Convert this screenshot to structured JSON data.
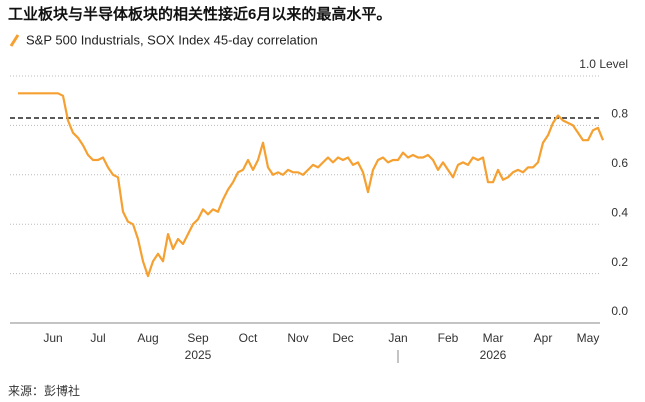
{
  "chart_data": {
    "type": "line",
    "title": "工业板块与半导体板块的相关性接近6月以来的最高水平。",
    "source": "来源：彭博社",
    "categories": [
      null,
      null,
      null,
      null,
      null,
      null,
      null,
      "Jun",
      null,
      null,
      null,
      null,
      null,
      null,
      null,
      null,
      "Jul",
      null,
      null,
      null,
      null,
      null,
      null,
      null,
      null,
      null,
      "Aug",
      null,
      null,
      null,
      null,
      null,
      null,
      null,
      null,
      null,
      "Sep",
      null,
      null,
      null,
      null,
      null,
      null,
      null,
      null,
      null,
      "Oct",
      null,
      null,
      null,
      null,
      null,
      null,
      null,
      null,
      null,
      "Nov",
      null,
      null,
      null,
      null,
      null,
      null,
      null,
      null,
      "Dec",
      null,
      null,
      null,
      null,
      null,
      null,
      null,
      null,
      null,
      null,
      "Jan",
      null,
      null,
      null,
      null,
      null,
      null,
      null,
      null,
      null,
      "Feb",
      null,
      null,
      null,
      null,
      null,
      null,
      null,
      null,
      "Mar",
      null,
      null,
      null,
      null,
      null,
      null,
      null,
      null,
      null,
      "Apr",
      null,
      null,
      null,
      null,
      null,
      null,
      null,
      null,
      "May",
      null,
      null,
      null
    ],
    "x_groups": [
      {
        "label": "2025",
        "size": 76
      },
      {
        "label": "2026",
        "size": 42
      }
    ],
    "series": [
      {
        "name": "S&P 500 Industrials, SOX Index 45-day correlation",
        "color": "#f5a030",
        "values": [
          0.93,
          0.93,
          0.93,
          0.93,
          0.93,
          0.93,
          0.93,
          0.93,
          0.93,
          0.92,
          0.82,
          0.77,
          0.75,
          0.72,
          0.68,
          0.66,
          0.66,
          0.67,
          0.63,
          0.6,
          0.59,
          0.45,
          0.41,
          0.4,
          0.34,
          0.25,
          0.19,
          0.25,
          0.28,
          0.25,
          0.36,
          0.3,
          0.34,
          0.32,
          0.36,
          0.4,
          0.42,
          0.46,
          0.44,
          0.46,
          0.45,
          0.5,
          0.54,
          0.57,
          0.61,
          0.62,
          0.66,
          0.62,
          0.66,
          0.73,
          0.63,
          0.6,
          0.61,
          0.6,
          0.62,
          0.61,
          0.61,
          0.6,
          0.62,
          0.64,
          0.63,
          0.65,
          0.67,
          0.65,
          0.67,
          0.66,
          0.67,
          0.64,
          0.65,
          0.61,
          0.53,
          0.62,
          0.66,
          0.67,
          0.65,
          0.66,
          0.66,
          0.69,
          0.67,
          0.68,
          0.67,
          0.67,
          0.68,
          0.66,
          0.62,
          0.65,
          0.62,
          0.59,
          0.64,
          0.65,
          0.64,
          0.67,
          0.66,
          0.67,
          0.57,
          0.57,
          0.62,
          0.58,
          0.59,
          0.61,
          0.62,
          0.61,
          0.63,
          0.63,
          0.65,
          0.73,
          0.76,
          0.81,
          0.84,
          0.82,
          0.81,
          0.8,
          0.77,
          0.74,
          0.74,
          0.78,
          0.79,
          0.74
        ]
      }
    ],
    "reference_line": 0.83,
    "ylim": [
      0,
      1
    ],
    "yticks": [
      {
        "value": 0,
        "label": "0.0"
      },
      0.2,
      0.4,
      0.6,
      0.8,
      {
        "value": 1,
        "label": "1.0 Level"
      }
    ],
    "grid": true
  }
}
